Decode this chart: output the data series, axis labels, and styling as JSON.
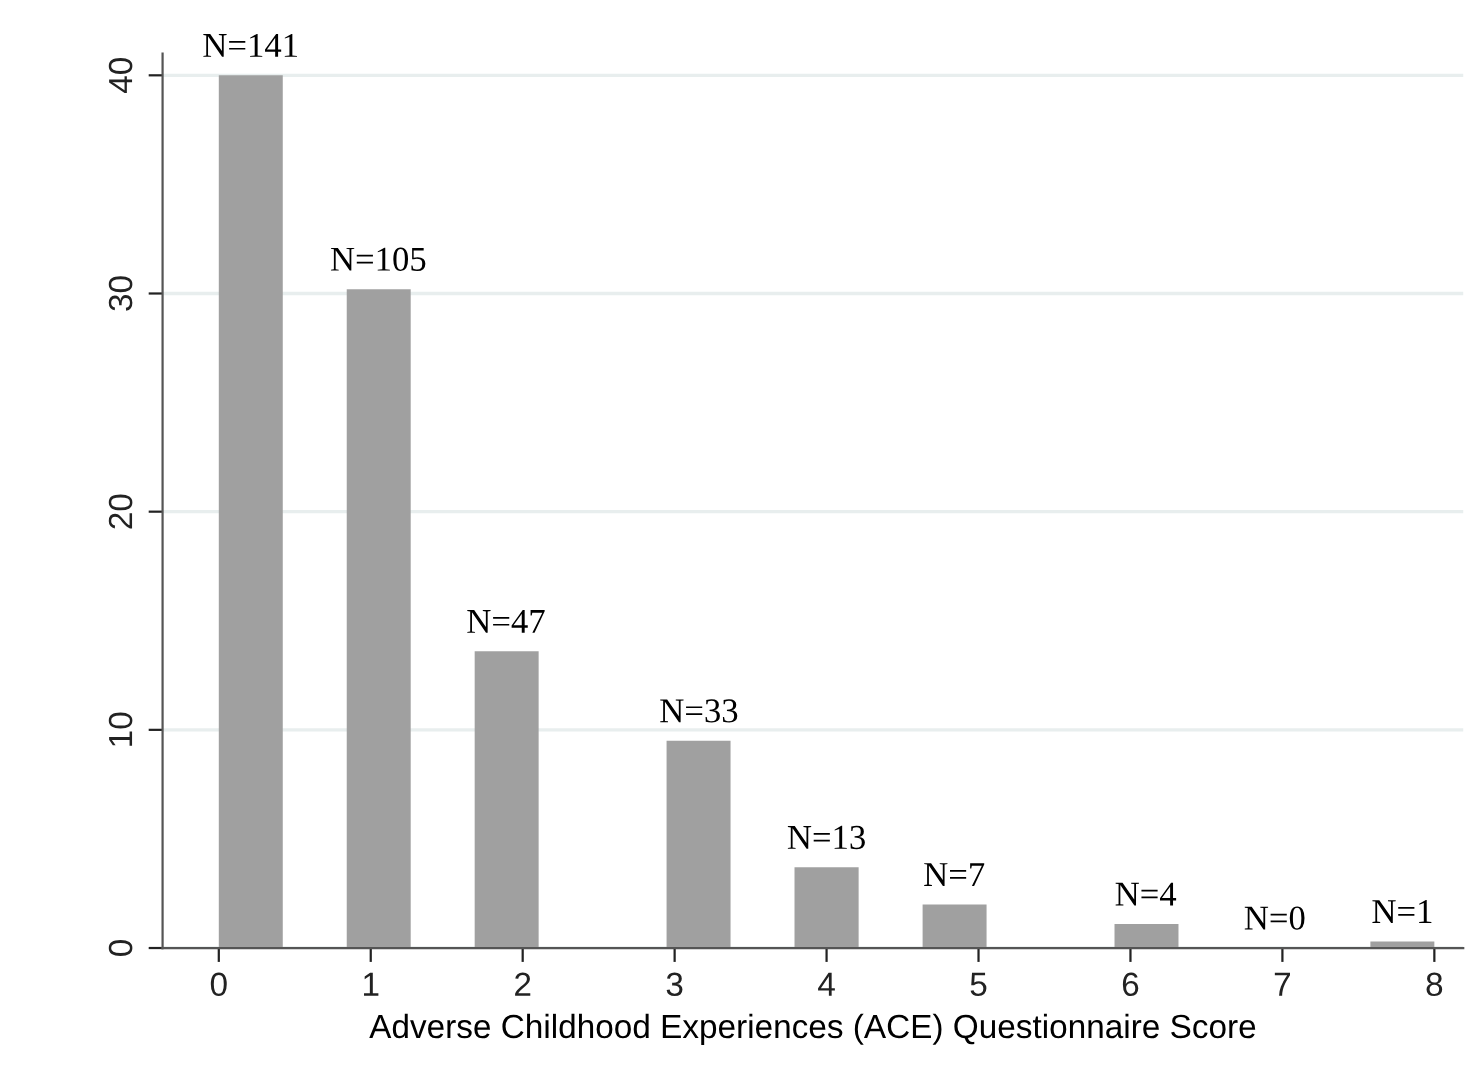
{
  "chart_data": {
    "type": "histogram",
    "xlabel": "Adverse Childhood Experiences (ACE) Questionnaire Score",
    "bins": [
      0,
      0.421,
      0.842,
      1.263,
      1.684,
      2.105,
      2.526,
      2.947,
      3.368,
      3.789,
      4.211,
      4.632,
      5.053,
      5.474,
      5.895,
      6.316,
      6.737,
      7.158,
      7.579,
      8
    ],
    "values": [
      40,
      0,
      30.2,
      0,
      13.6,
      0,
      0,
      9.5,
      0,
      3.7,
      0,
      2.0,
      0,
      0,
      1.1,
      0,
      0,
      0,
      0.3
    ],
    "annotations": [
      {
        "text": "N=141",
        "x": 0.21,
        "y": 40
      },
      {
        "text": "N=105",
        "x": 1.05,
        "y": 30.2
      },
      {
        "text": "N=47",
        "x": 1.89,
        "y": 13.6
      },
      {
        "text": "N=33",
        "x": 3.16,
        "y": 9.5
      },
      {
        "text": "N=13",
        "x": 4.0,
        "y": 3.7
      },
      {
        "text": "N=7",
        "x": 4.84,
        "y": 2.0
      },
      {
        "text": "N=4",
        "x": 6.1,
        "y": 1.1
      },
      {
        "text": "N=0",
        "x": 6.95,
        "y": 0
      },
      {
        "text": "N=1",
        "x": 7.79,
        "y": 0.3
      }
    ],
    "color": "#a0a0a0",
    "xlim": [
      -0.37,
      8.19
    ],
    "xticks": [
      0,
      1,
      2,
      3,
      4,
      5,
      6,
      7,
      8
    ],
    "ylim": [
      0,
      41
    ],
    "yticks": [
      0,
      10,
      20,
      30,
      40
    ],
    "grid": "y"
  }
}
